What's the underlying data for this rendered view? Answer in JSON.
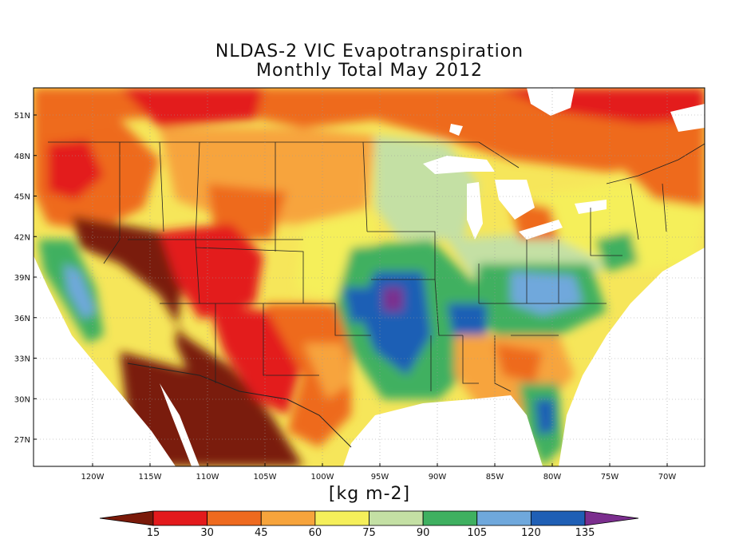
{
  "title": {
    "line1": "NLDAS-2 VIC Evapotranspiration",
    "line2": "Monthly Total May 2012"
  },
  "units_label": "[kg m-2]",
  "lat_labels": [
    "51N",
    "48N",
    "45N",
    "42N",
    "39N",
    "36N",
    "33N",
    "30N",
    "27N"
  ],
  "lon_labels": [
    "120W",
    "115W",
    "110W",
    "105W",
    "100W",
    "95W",
    "90W",
    "85W",
    "80W",
    "75W",
    "70W"
  ],
  "colorbar": {
    "ticks": [
      "15",
      "30",
      "45",
      "60",
      "75",
      "90",
      "105",
      "120",
      "135"
    ],
    "colors": [
      "#7a1a0a",
      "#e31a1c",
      "#ee6a1f",
      "#f7a43c",
      "#f5ef5a",
      "#c4e0a4",
      "#3fb060",
      "#6fa8dc",
      "#1f5fb5",
      "#7b2e8e"
    ]
  },
  "map": {
    "lat_range": [
      25,
      53
    ],
    "lon_range": [
      -125,
      -67
    ],
    "land_color": "#f5b544",
    "water_color": "#ffffff"
  }
}
